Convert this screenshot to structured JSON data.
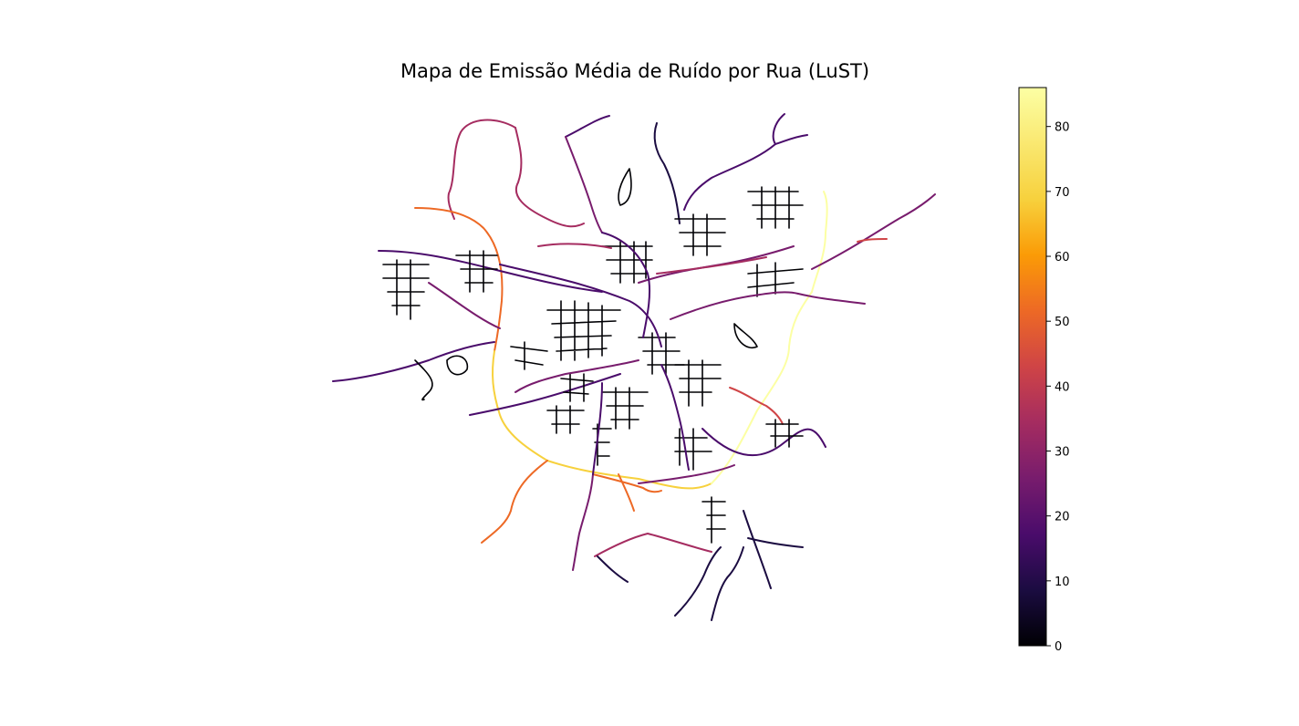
{
  "chart_data": {
    "type": "map",
    "title": "Mapa de Emissão Média de Ruído por Rua (LuST)",
    "colorbar": {
      "colormap": "inferno",
      "min": 0,
      "max": 86,
      "ticks": [
        0,
        10,
        20,
        30,
        40,
        50,
        60,
        70,
        80
      ],
      "tick_labels": [
        "0",
        "10",
        "20",
        "30",
        "40",
        "50",
        "60",
        "70",
        "80"
      ],
      "label": ""
    },
    "description_of_marks": "street network lines coloured by mean noise emission"
  }
}
